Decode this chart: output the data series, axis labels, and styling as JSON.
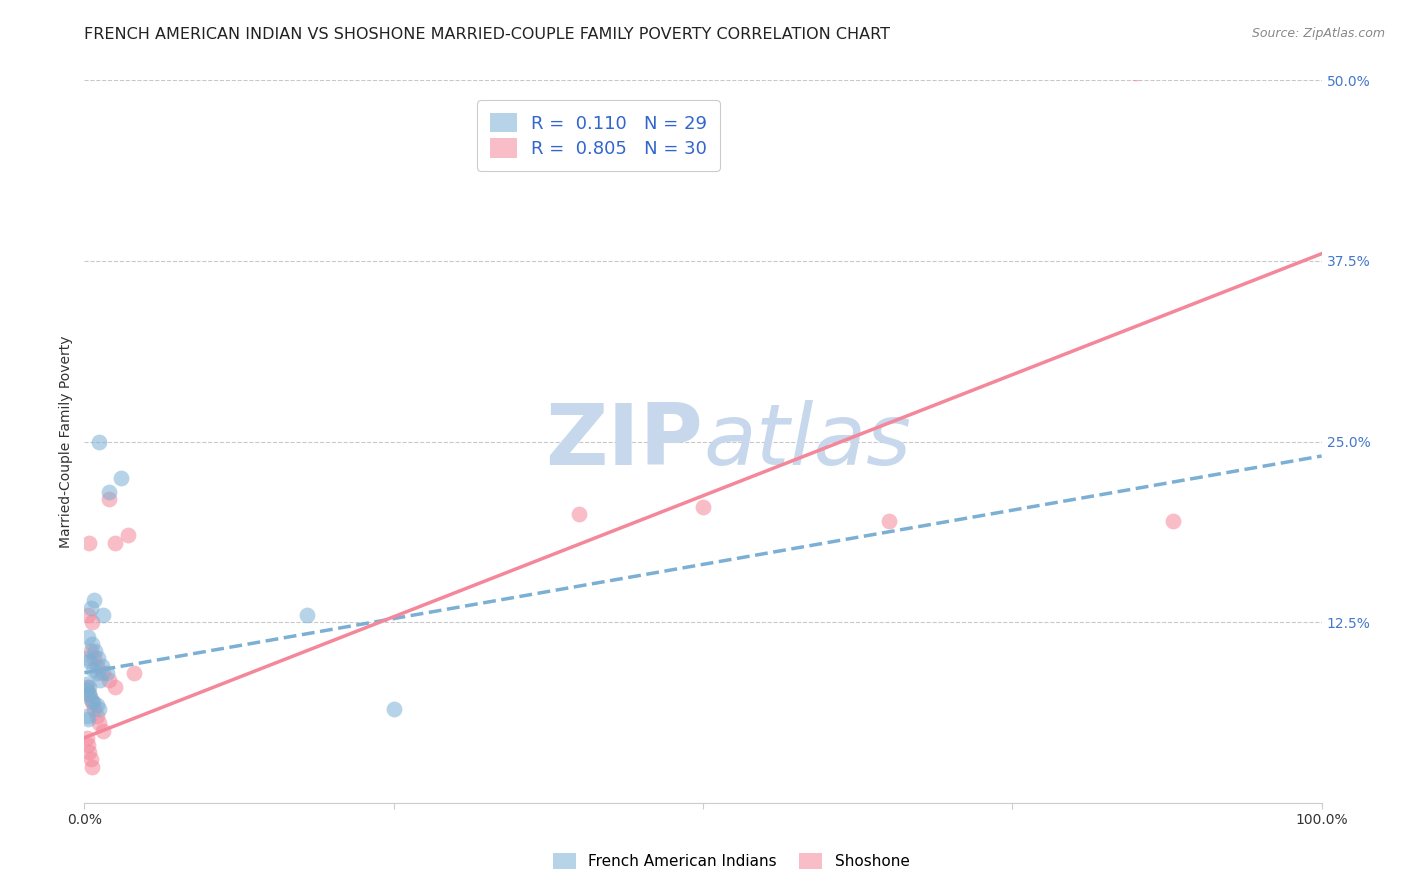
{
  "title": "FRENCH AMERICAN INDIAN VS SHOSHONE MARRIED-COUPLE FAMILY POVERTY CORRELATION CHART",
  "source": "Source: ZipAtlas.com",
  "ylabel": "Married-Couple Family Poverty",
  "xlabel": "",
  "xlim": [
    0,
    100
  ],
  "ylim": [
    0,
    50
  ],
  "xticks": [
    0,
    25,
    50,
    75,
    100
  ],
  "xticklabels": [
    "0.0%",
    "",
    "",
    "",
    "100.0%"
  ],
  "yticks": [
    0,
    12.5,
    25,
    37.5,
    50
  ],
  "yticklabels": [
    "",
    "12.5%",
    "25.0%",
    "37.5%",
    "50.0%"
  ],
  "r_blue": 0.11,
  "n_blue": 29,
  "r_pink": 0.805,
  "n_pink": 30,
  "blue_scatter_x": [
    1.2,
    2.0,
    3.0,
    0.5,
    0.8,
    1.5,
    0.3,
    0.6,
    0.9,
    1.1,
    1.4,
    1.8,
    0.2,
    0.4,
    0.7,
    1.0,
    1.3,
    0.15,
    0.25,
    0.35,
    0.5,
    0.7,
    1.0,
    1.2,
    0.2,
    0.3,
    18.0,
    0.4,
    25.0
  ],
  "blue_scatter_y": [
    25.0,
    21.5,
    22.5,
    13.5,
    14.0,
    13.0,
    11.5,
    11.0,
    10.5,
    10.0,
    9.5,
    9.0,
    10.0,
    9.8,
    9.2,
    9.0,
    8.5,
    8.2,
    7.8,
    7.5,
    7.2,
    7.0,
    6.8,
    6.5,
    6.0,
    5.8,
    13.0,
    8.0,
    6.5
  ],
  "pink_scatter_x": [
    0.4,
    0.6,
    2.0,
    3.5,
    2.5,
    4.0,
    0.3,
    0.5,
    0.8,
    1.0,
    1.5,
    2.0,
    2.5,
    0.2,
    0.4,
    0.6,
    0.8,
    1.0,
    1.2,
    1.5,
    0.2,
    0.3,
    0.4,
    0.5,
    0.6,
    50.0,
    65.0,
    85.0,
    40.0,
    88.0
  ],
  "pink_scatter_y": [
    18.0,
    12.5,
    21.0,
    18.5,
    18.0,
    9.0,
    13.0,
    10.5,
    10.0,
    9.5,
    9.0,
    8.5,
    8.0,
    8.0,
    7.5,
    7.0,
    6.5,
    6.0,
    5.5,
    5.0,
    4.5,
    4.0,
    3.5,
    3.0,
    2.5,
    20.5,
    19.5,
    50.5,
    20.0,
    19.5
  ],
  "blue_line_x0": 0,
  "blue_line_x1": 100,
  "blue_line_y0": 9.0,
  "blue_line_y1": 24.0,
  "pink_line_x0": 0,
  "pink_line_x1": 100,
  "pink_line_y0": 4.5,
  "pink_line_y1": 38.0,
  "scatter_alpha": 0.55,
  "scatter_size": 130,
  "blue_color": "#7BAFD4",
  "pink_color": "#F4879A",
  "watermark_zip": "ZIP",
  "watermark_atlas": "atlas",
  "watermark_color": "#C8D8EC",
  "background_color": "#FFFFFF",
  "grid_color": "#BBBBBB",
  "title_fontsize": 11.5,
  "axis_label_fontsize": 10,
  "tick_fontsize": 10,
  "legend_fontsize": 13,
  "source_fontsize": 9
}
